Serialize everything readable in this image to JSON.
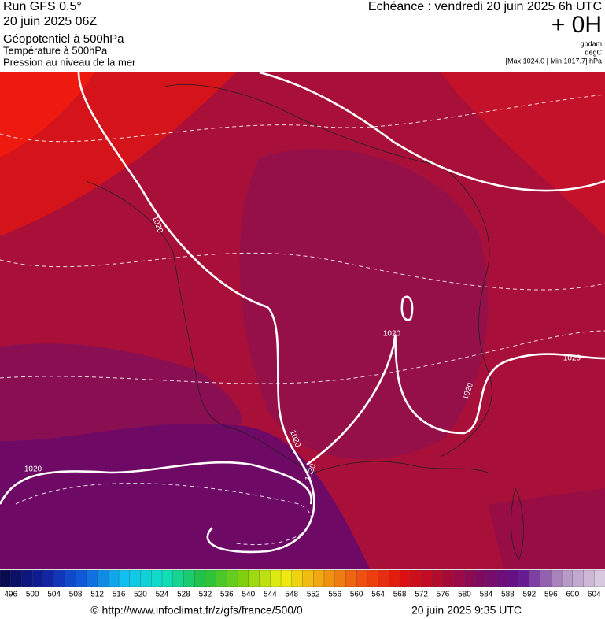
{
  "header": {
    "run": "Run GFS 0.5°",
    "date": "20 juin 2025 06Z",
    "title": "Géopotentiel à 500hPa",
    "subtitle1": "Température à 500hPa",
    "subtitle2": "Pression au niveau de la mer",
    "echeance": "Echéance : vendredi 20 juin 2025 6h UTC",
    "lead": "+ 0H",
    "unit1": "gpdam",
    "unit2": "degC",
    "range": "[Max 1024.0 | Min 1017.7] hPa"
  },
  "map": {
    "contour_labels": [
      "1020",
      "1020",
      "1020",
      "1020",
      "1020",
      "1020",
      "1020"
    ]
  },
  "colorbar": {
    "labels": [
      496,
      500,
      504,
      508,
      512,
      516,
      520,
      524,
      528,
      532,
      536,
      540,
      544,
      548,
      552,
      556,
      560,
      564,
      568,
      572,
      576,
      580,
      584,
      588,
      592,
      596,
      600,
      604
    ]
  },
  "footer": {
    "url": "© http://www.infoclimat.fr/z/gfs/france/500/0",
    "time": "20 juin 2025  9:35 UTC"
  }
}
